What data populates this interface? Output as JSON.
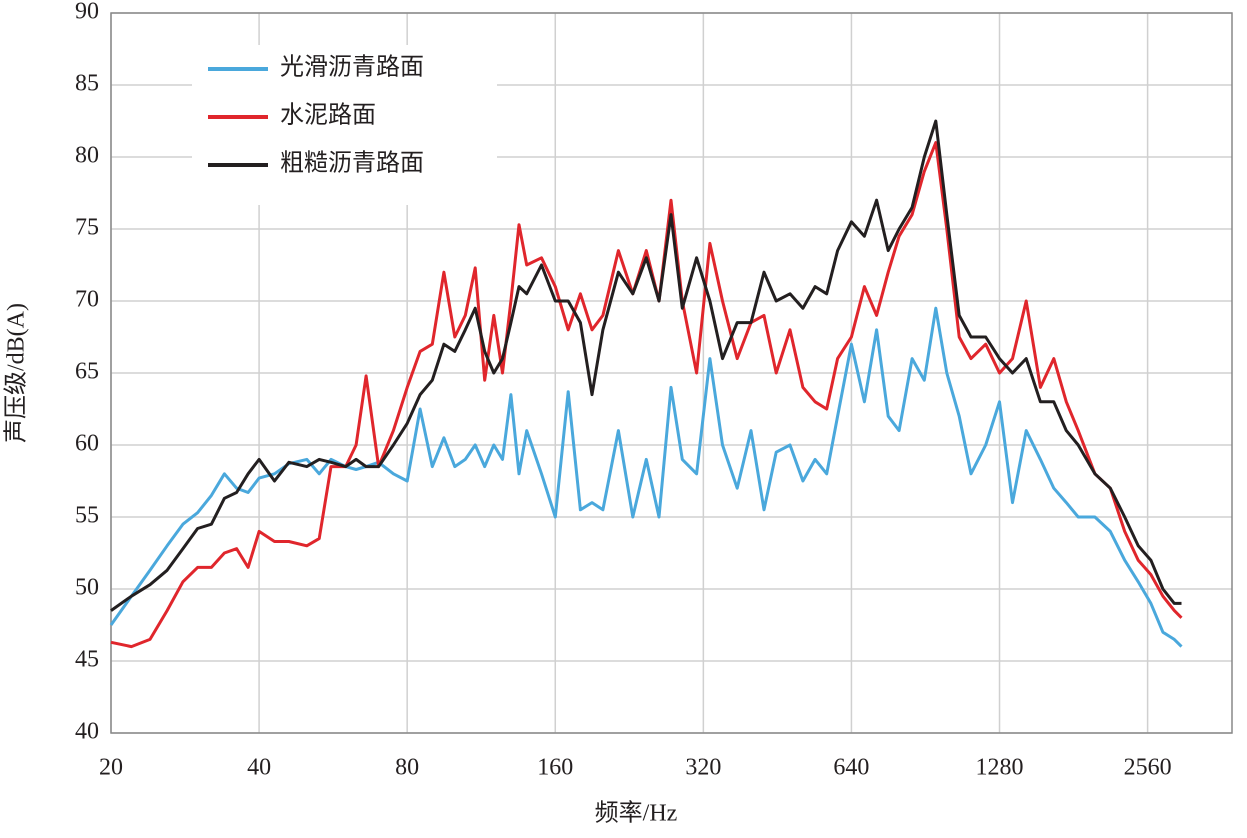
{
  "chart_data": {
    "type": "line",
    "xlabel": "频率/Hz",
    "ylabel": "声压级/dB(A)",
    "x_log_scale": true,
    "x_log_base": 2,
    "grid": true,
    "legend_position": "upper-left",
    "xlim": [
      20,
      3800
    ],
    "ylim": [
      40,
      90
    ],
    "xticks": [
      20,
      40,
      80,
      160,
      320,
      640,
      1280,
      2560
    ],
    "yticks": [
      40,
      45,
      50,
      55,
      60,
      65,
      70,
      75,
      80,
      85,
      90
    ],
    "x": [
      20,
      22,
      24,
      26,
      28,
      30,
      32,
      34,
      36,
      38,
      40,
      43,
      46,
      50,
      53,
      56,
      60,
      63,
      66,
      70,
      75,
      80,
      85,
      90,
      95,
      100,
      105,
      110,
      115,
      120,
      125,
      130,
      135,
      140,
      150,
      160,
      170,
      180,
      190,
      200,
      215,
      230,
      245,
      260,
      275,
      290,
      310,
      330,
      350,
      375,
      400,
      425,
      450,
      480,
      510,
      540,
      570,
      600,
      640,
      680,
      720,
      760,
      800,
      850,
      900,
      950,
      1000,
      1060,
      1120,
      1200,
      1280,
      1360,
      1450,
      1550,
      1650,
      1750,
      1850,
      2000,
      2150,
      2300,
      2450,
      2600,
      2750,
      2900,
      3000
    ],
    "series": [
      {
        "name": "光滑沥青路面",
        "color": "#4aa8dc",
        "values": [
          47.5,
          49.5,
          51.3,
          53,
          54.5,
          55.3,
          56.5,
          58,
          57,
          56.7,
          57.7,
          58,
          58.7,
          59,
          58,
          59,
          58.5,
          58.3,
          58.5,
          58.8,
          58,
          57.5,
          62.5,
          58.5,
          60.5,
          58.5,
          59,
          60,
          58.5,
          60,
          59,
          63.5,
          58,
          61,
          58,
          55,
          63.7,
          55.5,
          56,
          55.5,
          61,
          55,
          59,
          55,
          64,
          59,
          58,
          66,
          60,
          57,
          61,
          55.5,
          59.5,
          60,
          57.5,
          59,
          58,
          62,
          67,
          63,
          68,
          62,
          61,
          66,
          64.5,
          69.5,
          65,
          62,
          58,
          60,
          63,
          56,
          61,
          59,
          57,
          56,
          55,
          55,
          54,
          52,
          50.5,
          49,
          47,
          46.5,
          46
        ]
      },
      {
        "name": "水泥路面",
        "color": "#e0262c",
        "values": [
          46.3,
          46,
          46.5,
          48.5,
          50.5,
          51.5,
          51.5,
          52.5,
          52.8,
          51.5,
          54,
          53.3,
          53.3,
          53,
          53.5,
          58.5,
          58.5,
          60,
          64.8,
          58.5,
          61,
          64,
          66.5,
          67,
          72,
          67.5,
          69,
          72.3,
          64.5,
          69,
          65,
          70,
          75.3,
          72.5,
          73,
          71,
          68,
          70.5,
          68,
          69,
          73.5,
          70.5,
          73.5,
          70,
          77,
          70,
          65,
          74,
          70,
          66,
          68.5,
          69,
          65,
          68,
          64,
          63,
          62.5,
          66,
          67.5,
          71,
          69,
          72,
          74.5,
          76,
          79,
          81,
          75,
          67.5,
          66,
          67,
          65,
          66,
          70,
          64,
          66,
          63,
          61,
          58,
          57,
          54,
          52,
          51,
          49.5,
          48.5,
          48
        ]
      },
      {
        "name": "粗糙沥青路面",
        "color": "#231f20",
        "values": [
          48.5,
          49.5,
          50.3,
          51.3,
          52.8,
          54.2,
          54.5,
          56.3,
          56.7,
          58,
          59,
          57.5,
          58.8,
          58.5,
          59,
          58.8,
          58.5,
          59,
          58.5,
          58.5,
          60,
          61.5,
          63.5,
          64.5,
          67,
          66.5,
          68,
          69.5,
          66.5,
          65,
          66,
          68.5,
          71,
          70.5,
          72.5,
          70,
          70,
          68.5,
          63.5,
          68,
          72,
          70.5,
          73,
          70,
          76,
          69.5,
          73,
          70,
          66,
          68.5,
          68.5,
          72,
          70,
          70.5,
          69.5,
          71,
          70.5,
          73.5,
          75.5,
          74.5,
          77,
          73.5,
          75,
          76.5,
          80,
          82.5,
          76,
          69,
          67.5,
          67.5,
          66,
          65,
          66,
          63,
          63,
          61,
          60,
          58,
          57,
          55,
          53,
          52,
          50,
          49,
          49
        ]
      }
    ]
  }
}
